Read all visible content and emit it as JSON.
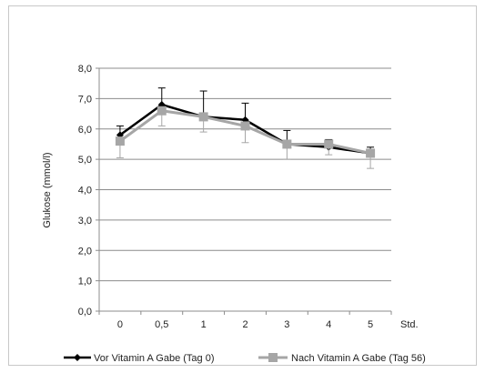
{
  "chart_data": {
    "type": "line",
    "title": "",
    "xlabel": "",
    "x_unit_label": "Std.",
    "ylabel": "Glukose (mmol/l)",
    "ylim": [
      0,
      8
    ],
    "y_ticks": [
      "0,0",
      "1,0",
      "2,0",
      "3,0",
      "4,0",
      "5,0",
      "6,0",
      "7,0",
      "8,0"
    ],
    "categories": [
      "0",
      "0,5",
      "1",
      "2",
      "3",
      "4",
      "5"
    ],
    "grid": true,
    "legend_position": "bottom",
    "series": [
      {
        "name": "Vor Vitamin A Gabe (Tag 0)",
        "color": "#000000",
        "marker": "diamond",
        "values": [
          5.8,
          6.8,
          6.4,
          6.3,
          5.5,
          5.4,
          5.2
        ],
        "error_up": [
          0.3,
          0.55,
          0.85,
          0.55,
          0.45,
          0.25,
          0.2
        ]
      },
      {
        "name": "Nach Vitamin A Gabe (Tag 56)",
        "color": "#a6a6a6",
        "marker": "square",
        "values": [
          5.6,
          6.6,
          6.4,
          6.1,
          5.5,
          5.5,
          5.2
        ],
        "error_down": [
          0.55,
          0.5,
          0.5,
          0.55,
          0.5,
          0.35,
          0.5
        ]
      }
    ]
  }
}
